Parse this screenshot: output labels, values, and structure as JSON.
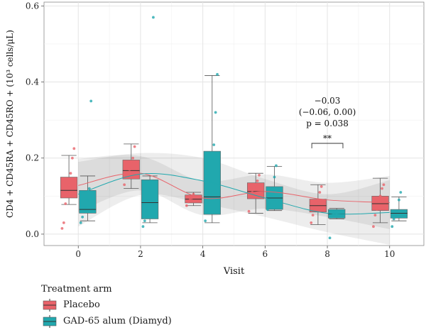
{
  "chart_data": {
    "type": "box",
    "xlabel": "Visit",
    "ylabel": "CD4 + CD45RA + CD45RO + (10³ cells/μL)",
    "x_ticks": [
      "0",
      "2",
      "4",
      "6",
      "8",
      "10"
    ],
    "y_ticks": [
      "0.0",
      "0.2",
      "0.4",
      "0.6"
    ],
    "ylim": [
      -0.03,
      0.61
    ],
    "xlim": [
      -1.1,
      11.1
    ],
    "grid": true,
    "legend": {
      "title": "Treatment arm",
      "placement": "bottom-left",
      "entries": [
        "Placebo",
        "GAD-65 alum (Diamyd)"
      ]
    },
    "series": [
      {
        "name": "Placebo",
        "color": "#E8636A",
        "boxes": [
          {
            "visit": 0,
            "whisker_low": 0.078,
            "q1": 0.095,
            "median": 0.115,
            "q3": 0.15,
            "whisker_high": 0.207
          },
          {
            "visit": 2,
            "whisker_low": 0.12,
            "q1": 0.145,
            "median": 0.167,
            "q3": 0.195,
            "whisker_high": 0.237
          },
          {
            "visit": 4,
            "whisker_low": 0.075,
            "q1": 0.082,
            "median": 0.092,
            "q3": 0.103,
            "whisker_high": 0.11
          },
          {
            "visit": 6,
            "whisker_low": 0.055,
            "q1": 0.093,
            "median": 0.112,
            "q3": 0.135,
            "whisker_high": 0.16
          },
          {
            "visit": 8,
            "whisker_low": 0.025,
            "q1": 0.058,
            "median": 0.075,
            "q3": 0.092,
            "whisker_high": 0.13
          },
          {
            "visit": 10,
            "whisker_low": 0.03,
            "q1": 0.062,
            "median": 0.08,
            "q3": 0.1,
            "whisker_high": 0.147
          }
        ],
        "points": [
          {
            "visit": 0,
            "values": [
              0.015,
              0.03,
              0.08,
              0.11,
              0.13,
              0.16,
              0.2,
              0.225
            ]
          },
          {
            "visit": 2,
            "values": [
              0.13,
              0.15,
              0.16,
              0.17,
              0.19,
              0.2,
              0.23
            ]
          },
          {
            "visit": 4,
            "values": [
              0.075,
              0.085,
              0.09,
              0.095,
              0.105
            ]
          },
          {
            "visit": 6,
            "values": [
              0.06,
              0.1,
              0.11,
              0.12,
              0.13,
              0.14,
              0.155
            ]
          },
          {
            "visit": 8,
            "values": [
              0.03,
              0.05,
              0.065,
              0.08,
              0.09,
              0.11,
              0.125
            ]
          },
          {
            "visit": 10,
            "values": [
              0.02,
              0.05,
              0.065,
              0.085,
              0.1,
              0.12,
              0.13
            ]
          }
        ],
        "trend": [
          [
            0,
            0.128
          ],
          [
            2,
            0.16
          ],
          [
            4,
            0.095
          ],
          [
            6,
            0.112
          ],
          [
            8,
            0.09
          ],
          [
            10,
            0.083
          ]
        ]
      },
      {
        "name": "GAD-65 alum (Diamyd)",
        "color": "#21A8AE",
        "boxes": [
          {
            "visit": 0,
            "whisker_low": 0.035,
            "q1": 0.055,
            "median": 0.065,
            "q3": 0.115,
            "whisker_high": 0.153
          },
          {
            "visit": 2,
            "whisker_low": 0.03,
            "q1": 0.04,
            "median": 0.083,
            "q3": 0.143,
            "whisker_high": 0.153
          },
          {
            "visit": 4,
            "whisker_low": 0.03,
            "q1": 0.052,
            "median": 0.098,
            "q3": 0.218,
            "whisker_high": 0.417
          },
          {
            "visit": 6,
            "whisker_low": 0.062,
            "q1": 0.065,
            "median": 0.095,
            "q3": 0.125,
            "whisker_high": 0.178
          },
          {
            "visit": 8,
            "whisker_low": 0.04,
            "q1": 0.042,
            "median": 0.053,
            "q3": 0.065,
            "whisker_high": 0.068
          },
          {
            "visit": 10,
            "whisker_low": 0.035,
            "q1": 0.042,
            "median": 0.055,
            "q3": 0.065,
            "whisker_high": 0.098
          }
        ],
        "points": [
          {
            "visit": 0,
            "values": [
              0.03,
              0.045,
              0.06,
              0.07,
              0.09,
              0.12,
              0.35
            ]
          },
          {
            "visit": 2,
            "values": [
              0.02,
              0.035,
              0.06,
              0.09,
              0.12,
              0.14,
              0.57
            ]
          },
          {
            "visit": 4,
            "values": [
              0.035,
              0.06,
              0.09,
              0.14,
              0.2,
              0.235,
              0.32,
              0.42
            ]
          },
          {
            "visit": 6,
            "values": [
              0.065,
              0.08,
              0.1,
              0.12,
              0.15,
              0.18
            ]
          },
          {
            "visit": 8,
            "values": [
              -0.01,
              0.045,
              0.05,
              0.06
            ]
          },
          {
            "visit": 10,
            "values": [
              0.02,
              0.04,
              0.05,
              0.06,
              0.09,
              0.11
            ]
          }
        ],
        "trend": [
          [
            0,
            0.105
          ],
          [
            2,
            0.158
          ],
          [
            4,
            0.14
          ],
          [
            6,
            0.095
          ],
          [
            8,
            0.055
          ],
          [
            10,
            0.057
          ]
        ]
      }
    ],
    "annotation": {
      "lines": [
        "−0.03",
        "(−0.06, 0.00)",
        "p = 0.038"
      ],
      "significance": "**",
      "bracket_visits": [
        7.5,
        8.5
      ]
    }
  }
}
